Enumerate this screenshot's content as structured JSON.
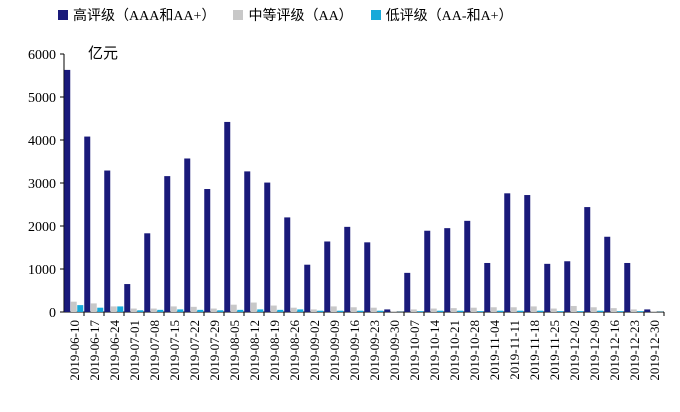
{
  "chart_data": {
    "type": "bar",
    "title": "",
    "xlabel": "",
    "ylabel": "",
    "unit_label": "亿元",
    "ylim": [
      0,
      6000
    ],
    "yticks": [
      0,
      1000,
      2000,
      3000,
      4000,
      5000,
      6000
    ],
    "grid": false,
    "legend_position": "top",
    "categories": [
      "2019-06-10",
      "2019-06-17",
      "2019-06-24",
      "2019-07-01",
      "2019-07-08",
      "2019-07-15",
      "2019-07-22",
      "2019-07-29",
      "2019-08-05",
      "2019-08-12",
      "2019-08-19",
      "2019-08-26",
      "2019-09-02",
      "2019-09-09",
      "2019-09-16",
      "2019-09-23",
      "2019-09-30",
      "2019-10-07",
      "2019-10-14",
      "2019-10-21",
      "2019-10-28",
      "2019-11-04",
      "2019-11-11",
      "2019-11-18",
      "2019-11-25",
      "2019-12-02",
      "2019-12-09",
      "2019-12-16",
      "2019-12-23",
      "2019-12-30"
    ],
    "series": [
      {
        "name": "高评级（AAA和AA+）",
        "color": "#1a1a7a",
        "values": [
          5630,
          4080,
          3290,
          650,
          1830,
          3160,
          3570,
          2860,
          4420,
          3270,
          3010,
          2200,
          1100,
          1640,
          1980,
          1620,
          60,
          910,
          1890,
          1950,
          2120,
          1140,
          2760,
          2720,
          1120,
          1180,
          2440,
          1750,
          1140,
          60
        ]
      },
      {
        "name": "中等评级（AA）",
        "color": "#c8c8c8",
        "values": [
          240,
          200,
          130,
          80,
          80,
          130,
          120,
          80,
          170,
          220,
          150,
          100,
          60,
          130,
          110,
          100,
          10,
          60,
          80,
          90,
          100,
          110,
          110,
          130,
          80,
          140,
          110,
          90,
          60,
          10
        ]
      },
      {
        "name": "低评级（AA-和A+）",
        "color": "#17a9d9",
        "values": [
          160,
          100,
          130,
          40,
          50,
          60,
          50,
          40,
          50,
          60,
          50,
          60,
          30,
          30,
          30,
          30,
          5,
          20,
          30,
          30,
          20,
          30,
          30,
          30,
          20,
          20,
          30,
          20,
          20,
          5
        ]
      }
    ]
  }
}
